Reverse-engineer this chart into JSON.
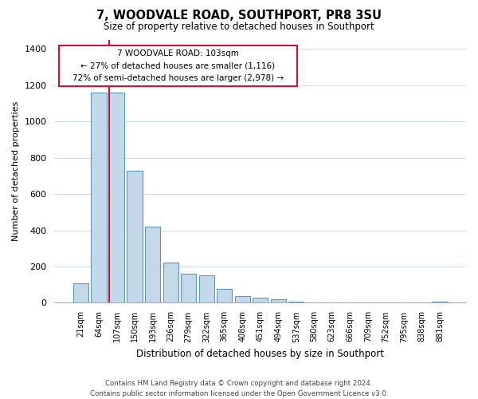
{
  "title": "7, WOODVALE ROAD, SOUTHPORT, PR8 3SU",
  "subtitle": "Size of property relative to detached houses in Southport",
  "xlabel": "Distribution of detached houses by size in Southport",
  "ylabel": "Number of detached properties",
  "bar_labels": [
    "21sqm",
    "64sqm",
    "107sqm",
    "150sqm",
    "193sqm",
    "236sqm",
    "279sqm",
    "322sqm",
    "365sqm",
    "408sqm",
    "451sqm",
    "494sqm",
    "537sqm",
    "580sqm",
    "623sqm",
    "666sqm",
    "709sqm",
    "752sqm",
    "795sqm",
    "838sqm",
    "881sqm"
  ],
  "bar_values": [
    107,
    1160,
    1160,
    730,
    420,
    220,
    160,
    150,
    75,
    35,
    30,
    20,
    8,
    0,
    0,
    0,
    0,
    0,
    0,
    0,
    5
  ],
  "bar_color": "#c5d8ea",
  "bar_edge_color": "#5a9abf",
  "highlight_bar_index": 2,
  "highlight_line_color": "#cc1133",
  "annotation_box_text": "7 WOODVALE ROAD: 103sqm\n← 27% of detached houses are smaller (1,116)\n72% of semi-detached houses are larger (2,978) →",
  "ylim": [
    0,
    1450
  ],
  "yticks": [
    0,
    200,
    400,
    600,
    800,
    1000,
    1200,
    1400
  ],
  "footer_line1": "Contains HM Land Registry data © Crown copyright and database right 2024.",
  "footer_line2": "Contains public sector information licensed under the Open Government Licence v3.0.",
  "background_color": "#ffffff",
  "grid_color": "#c8d8e8"
}
